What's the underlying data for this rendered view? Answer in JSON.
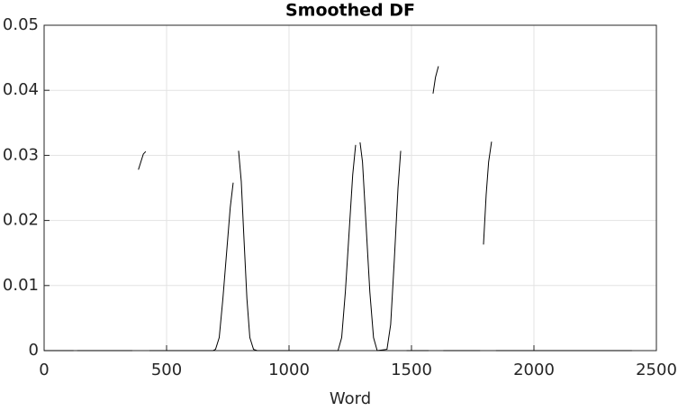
{
  "chart_data": {
    "type": "line",
    "title": "Smoothed DF",
    "x_label": "Word",
    "x": [
      0,
      120,
      125,
      135,
      360,
      370,
      385,
      395,
      405,
      415,
      420,
      430,
      690,
      700,
      715,
      730,
      745,
      760,
      772,
      783,
      794,
      805,
      815,
      828,
      840,
      855,
      870,
      1200,
      1215,
      1230,
      1245,
      1260,
      1272,
      1281,
      1290,
      1300,
      1315,
      1330,
      1345,
      1360,
      1400,
      1415,
      1430,
      1445,
      1456,
      1470,
      1480,
      1570,
      1578,
      1588,
      1598,
      1610,
      1620,
      1630,
      1780,
      1788,
      1794,
      1805,
      1815,
      1827,
      1835,
      1845,
      2400
    ],
    "series": [
      {
        "color": "#000000",
        "values": [
          0,
          0,
          null,
          0,
          0,
          null,
          0.0278,
          0.029,
          0.0302,
          0.0306,
          null,
          0,
          0,
          0.0002,
          0.002,
          0.008,
          0.015,
          0.022,
          0.0258,
          null,
          0.0307,
          0.026,
          0.018,
          0.008,
          0.002,
          0.0002,
          0,
          0,
          0.002,
          0.009,
          0.018,
          0.027,
          0.0316,
          null,
          0.032,
          0.029,
          0.019,
          0.009,
          0.002,
          0,
          0.0002,
          0.004,
          0.014,
          0.025,
          0.0307,
          null,
          0,
          0,
          null,
          0.0395,
          0.042,
          0.0437,
          null,
          0,
          0,
          null,
          0.0163,
          0.024,
          0.029,
          0.0321,
          null,
          0,
          0
        ]
      }
    ],
    "xlim": [
      0,
      2500
    ],
    "xticks": [
      0,
      500,
      1000,
      1500,
      2000,
      2500
    ],
    "ylim": [
      0,
      0.05
    ],
    "yticks": [
      0,
      0.01,
      0.02,
      0.03,
      0.04,
      0.05
    ],
    "grid": true
  }
}
